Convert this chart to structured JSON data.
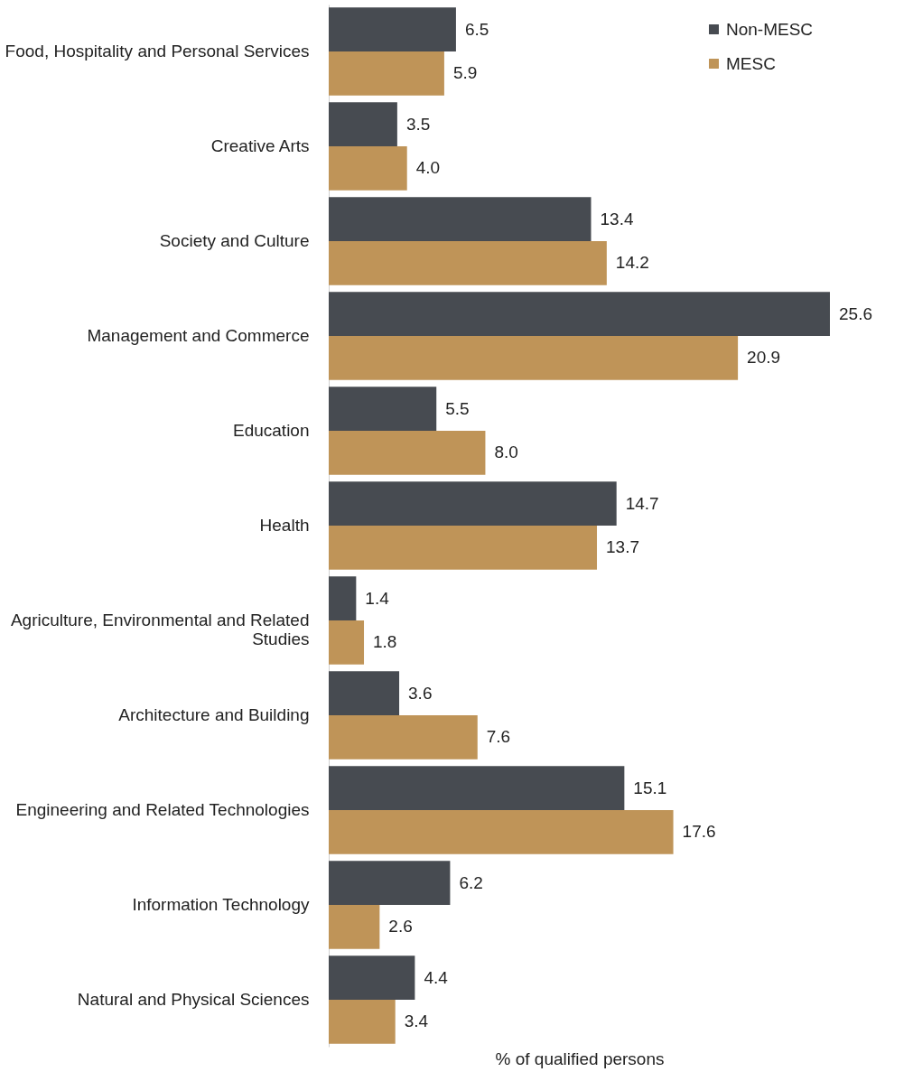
{
  "chart_data": {
    "type": "bar",
    "orientation": "horizontal",
    "xlabel": "% of qualified persons",
    "categories": [
      "Food, Hospitality and Personal Services",
      "Creative Arts",
      "Society and Culture",
      "Management and Commerce",
      "Education",
      "Health",
      "Agriculture, Environmental and Related Studies",
      "Architecture and Building",
      "Engineering and Related Technologies",
      "Information Technology",
      "Natural and Physical Sciences"
    ],
    "series": [
      {
        "name": "Non-MESC",
        "color": "#474b51",
        "values": [
          6.5,
          3.5,
          13.4,
          25.6,
          5.5,
          14.7,
          1.4,
          3.6,
          15.1,
          6.2,
          4.4
        ],
        "value_labels": [
          "6.5",
          "3.5",
          "13.4",
          "25.6",
          "5.5",
          "14.7",
          "1.4",
          "3.6",
          "15.1",
          "6.2",
          "4.4"
        ]
      },
      {
        "name": "MESC",
        "color": "#bf9458",
        "values": [
          5.9,
          4.0,
          14.2,
          20.9,
          8.0,
          13.7,
          1.8,
          7.6,
          17.6,
          2.6,
          3.4
        ],
        "value_labels": [
          "5.9",
          "4.0",
          "14.2",
          "20.9",
          "8.0",
          "13.7",
          "1.8",
          "7.6",
          "17.6",
          "2.6",
          "3.4"
        ]
      }
    ],
    "legend": "top right",
    "tick_labels": "y",
    "grid": false
  }
}
